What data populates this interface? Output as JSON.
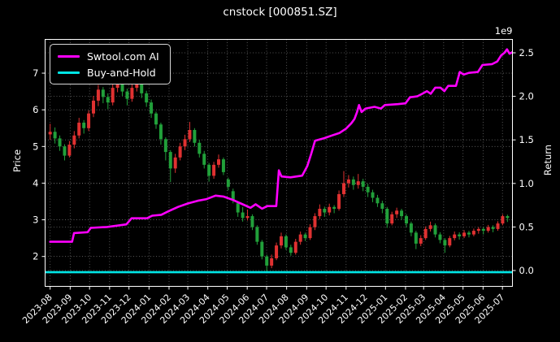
{
  "title": "cnstock [000851.SZ]",
  "legend": {
    "items": [
      {
        "label": "Swtool.com AI",
        "color": "#ff00ff"
      },
      {
        "label": "Buy-and-Hold",
        "color": "#00e6e6"
      }
    ]
  },
  "axes": {
    "left_label": "Price",
    "right_label": "Return",
    "right_offset_label": "1e9",
    "left_ticks": [
      "2",
      "3",
      "4",
      "5",
      "6",
      "7"
    ],
    "right_ticks": [
      "0.0",
      "0.5",
      "1.0",
      "1.5",
      "2.0",
      "2.5"
    ],
    "x_ticks": [
      "2023-08",
      "2023-09",
      "2023-10",
      "2023-11",
      "2023-12",
      "2024-01",
      "2024-02",
      "2024-03",
      "2024-04",
      "2024-05",
      "2024-06",
      "2024-07",
      "2024-08",
      "2024-09",
      "2024-10",
      "2024-11",
      "2024-12",
      "2025-01",
      "2025-02",
      "2025-03",
      "2025-04",
      "2025-05",
      "2025-06",
      "2025-07"
    ]
  },
  "chart_data": {
    "type": "candlestick",
    "title": "cnstock [000851.SZ]",
    "background": "#000000",
    "grid": true,
    "grid_color": "#6a6a6a",
    "legend_position": "upper left",
    "x_axis": {
      "tick_labels": [
        "2023-08",
        "2023-09",
        "2023-10",
        "2023-11",
        "2023-12",
        "2024-01",
        "2024-02",
        "2024-03",
        "2024-04",
        "2024-05",
        "2024-06",
        "2024-07",
        "2024-08",
        "2024-09",
        "2024-10",
        "2024-11",
        "2024-12",
        "2025-01",
        "2025-02",
        "2025-03",
        "2025-04",
        "2025-05",
        "2025-06",
        "2025-07"
      ],
      "tick_day_offsets": [
        0,
        31,
        61,
        92,
        122,
        153,
        184,
        213,
        244,
        274,
        305,
        335,
        366,
        397,
        427,
        458,
        488,
        519,
        550,
        578,
        609,
        639,
        670,
        700
      ],
      "days_total": 717
    },
    "left_axis": {
      "label": "Price",
      "ticks": [
        2,
        3,
        4,
        5,
        6,
        7
      ],
      "range": [
        1.18,
        7.93
      ]
    },
    "right_axis": {
      "label": "Return",
      "offset_text": "1e9",
      "ticks": [
        0.0,
        0.5,
        1.0,
        1.5,
        2.0,
        2.5
      ],
      "range": [
        -0.18,
        2.66
      ],
      "unit_scale": 1000000000
    },
    "candles": {
      "freq": "weekly-approximation",
      "day_step": 7.45,
      "up_color": "#e03131",
      "down_color": "#21a03a",
      "ohlc": [
        [
          5.33,
          5.62,
          5.18,
          5.4
        ],
        [
          5.4,
          5.52,
          5.08,
          5.22
        ],
        [
          5.22,
          5.3,
          4.88,
          5.0
        ],
        [
          5.0,
          5.06,
          4.62,
          4.75
        ],
        [
          4.75,
          5.15,
          4.7,
          5.05
        ],
        [
          5.05,
          5.42,
          4.95,
          5.3
        ],
        [
          5.3,
          5.78,
          5.22,
          5.65
        ],
        [
          5.65,
          5.72,
          5.35,
          5.5
        ],
        [
          5.5,
          5.98,
          5.42,
          5.9
        ],
        [
          5.9,
          6.38,
          5.8,
          6.25
        ],
        [
          6.25,
          6.68,
          6.1,
          6.55
        ],
        [
          6.55,
          6.62,
          6.18,
          6.35
        ],
        [
          6.35,
          6.45,
          6.02,
          6.2
        ],
        [
          6.2,
          6.72,
          6.12,
          6.6
        ],
        [
          6.6,
          7.08,
          6.48,
          6.85
        ],
        [
          6.85,
          6.92,
          6.38,
          6.5
        ],
        [
          6.5,
          6.58,
          6.12,
          6.3
        ],
        [
          6.3,
          6.7,
          6.22,
          6.6
        ],
        [
          6.6,
          7.0,
          6.5,
          6.8
        ],
        [
          6.8,
          6.85,
          6.32,
          6.45
        ],
        [
          6.45,
          6.52,
          6.08,
          6.2
        ],
        [
          6.2,
          6.28,
          5.78,
          5.9
        ],
        [
          5.9,
          5.95,
          5.48,
          5.6
        ],
        [
          5.6,
          5.65,
          5.05,
          5.2
        ],
        [
          5.2,
          5.25,
          4.62,
          4.85
        ],
        [
          4.85,
          4.9,
          4.03,
          4.4
        ],
        [
          4.4,
          4.8,
          4.28,
          4.7
        ],
        [
          4.7,
          5.1,
          4.62,
          5.0
        ],
        [
          5.0,
          5.32,
          4.9,
          5.2
        ],
        [
          5.2,
          5.67,
          5.12,
          5.45
        ],
        [
          5.45,
          5.5,
          5.0,
          5.1
        ],
        [
          5.1,
          5.18,
          4.7,
          4.8
        ],
        [
          4.8,
          4.88,
          4.4,
          4.5
        ],
        [
          4.5,
          4.55,
          4.04,
          4.2
        ],
        [
          4.2,
          4.58,
          4.12,
          4.5
        ],
        [
          4.5,
          4.78,
          4.42,
          4.65
        ],
        [
          4.65,
          4.7,
          4.22,
          4.3
        ],
        [
          4.1,
          4.15,
          3.8,
          3.9
        ],
        [
          3.78,
          3.85,
          3.45,
          3.55
        ],
        [
          3.45,
          3.5,
          3.08,
          3.2
        ],
        [
          3.2,
          3.35,
          2.95,
          3.05
        ],
        [
          3.05,
          3.28,
          2.98,
          3.1
        ],
        [
          3.1,
          3.15,
          2.72,
          2.8
        ],
        [
          2.8,
          2.85,
          2.32,
          2.4
        ],
        [
          2.4,
          2.45,
          1.92,
          2.0
        ],
        [
          2.0,
          2.05,
          1.57,
          1.75
        ],
        [
          1.75,
          2.05,
          1.68,
          1.95
        ],
        [
          1.95,
          2.38,
          1.9,
          2.3
        ],
        [
          2.3,
          2.65,
          2.22,
          2.55
        ],
        [
          2.55,
          2.6,
          2.18,
          2.25
        ],
        [
          2.25,
          2.32,
          2.02,
          2.1
        ],
        [
          2.1,
          2.48,
          2.05,
          2.4
        ],
        [
          2.4,
          2.68,
          2.32,
          2.6
        ],
        [
          2.6,
          2.65,
          2.42,
          2.5
        ],
        [
          2.5,
          2.88,
          2.45,
          2.8
        ],
        [
          2.8,
          3.18,
          2.72,
          3.1
        ],
        [
          3.1,
          3.42,
          3.02,
          3.3
        ],
        [
          3.3,
          3.36,
          3.08,
          3.2
        ],
        [
          3.2,
          3.44,
          3.12,
          3.35
        ],
        [
          3.35,
          3.4,
          3.18,
          3.3
        ],
        [
          3.3,
          3.8,
          3.25,
          3.7
        ],
        [
          3.7,
          4.33,
          3.62,
          4.0
        ],
        [
          4.0,
          4.22,
          3.88,
          4.1
        ],
        [
          4.1,
          4.18,
          3.82,
          3.95
        ],
        [
          3.95,
          4.25,
          3.85,
          4.05
        ],
        [
          4.05,
          4.12,
          3.78,
          3.9
        ],
        [
          3.9,
          3.98,
          3.62,
          3.75
        ],
        [
          3.75,
          3.82,
          3.48,
          3.6
        ],
        [
          3.6,
          3.68,
          3.35,
          3.45
        ],
        [
          3.45,
          3.52,
          3.18,
          3.3
        ],
        [
          3.3,
          3.35,
          2.78,
          2.9
        ],
        [
          2.9,
          3.22,
          2.85,
          3.15
        ],
        [
          3.15,
          3.33,
          3.05,
          3.25
        ],
        [
          3.25,
          3.3,
          3.0,
          3.1
        ],
        [
          3.1,
          3.15,
          2.8,
          2.9
        ],
        [
          2.9,
          2.95,
          2.55,
          2.65
        ],
        [
          2.65,
          2.7,
          2.2,
          2.35
        ],
        [
          2.35,
          2.58,
          2.28,
          2.5
        ],
        [
          2.5,
          2.82,
          2.45,
          2.75
        ],
        [
          2.75,
          2.95,
          2.68,
          2.85
        ],
        [
          2.85,
          2.9,
          2.52,
          2.6
        ],
        [
          2.6,
          2.66,
          2.36,
          2.45
        ],
        [
          2.45,
          2.5,
          2.1,
          2.3
        ],
        [
          2.3,
          2.56,
          2.25,
          2.5
        ],
        [
          2.5,
          2.68,
          2.44,
          2.6
        ],
        [
          2.6,
          2.66,
          2.46,
          2.55
        ],
        [
          2.55,
          2.72,
          2.5,
          2.65
        ],
        [
          2.65,
          2.7,
          2.52,
          2.6
        ],
        [
          2.6,
          2.76,
          2.55,
          2.7
        ],
        [
          2.7,
          2.8,
          2.62,
          2.75
        ],
        [
          2.75,
          2.8,
          2.6,
          2.7
        ],
        [
          2.7,
          2.86,
          2.65,
          2.8
        ],
        [
          2.8,
          2.85,
          2.66,
          2.75
        ],
        [
          2.75,
          2.96,
          2.7,
          2.9
        ],
        [
          2.9,
          3.15,
          2.85,
          3.1
        ],
        [
          3.1,
          3.14,
          2.94,
          3.05
        ]
      ]
    },
    "series": [
      {
        "name": "Swtool.com AI",
        "color": "#ff00ff",
        "axis": "right",
        "points": [
          [
            0,
            0.33
          ],
          [
            34,
            0.33
          ],
          [
            37,
            0.43
          ],
          [
            58,
            0.44
          ],
          [
            63,
            0.49
          ],
          [
            88,
            0.5
          ],
          [
            118,
            0.53
          ],
          [
            126,
            0.6
          ],
          [
            150,
            0.6
          ],
          [
            158,
            0.63
          ],
          [
            172,
            0.64
          ],
          [
            183,
            0.68
          ],
          [
            198,
            0.73
          ],
          [
            213,
            0.77
          ],
          [
            228,
            0.8
          ],
          [
            242,
            0.82
          ],
          [
            256,
            0.86
          ],
          [
            268,
            0.85
          ],
          [
            283,
            0.81
          ],
          [
            298,
            0.76
          ],
          [
            310,
            0.72
          ],
          [
            318,
            0.76
          ],
          [
            328,
            0.71
          ],
          [
            336,
            0.74
          ],
          [
            350,
            0.74
          ],
          [
            354,
            1.15
          ],
          [
            358,
            1.08
          ],
          [
            372,
            1.07
          ],
          [
            390,
            1.09
          ],
          [
            398,
            1.2
          ],
          [
            404,
            1.34
          ],
          [
            410,
            1.49
          ],
          [
            424,
            1.52
          ],
          [
            436,
            1.55
          ],
          [
            448,
            1.58
          ],
          [
            458,
            1.63
          ],
          [
            466,
            1.69
          ],
          [
            471,
            1.74
          ],
          [
            475,
            1.82
          ],
          [
            478,
            1.9
          ],
          [
            482,
            1.82
          ],
          [
            488,
            1.86
          ],
          [
            502,
            1.88
          ],
          [
            512,
            1.86
          ],
          [
            518,
            1.9
          ],
          [
            538,
            1.91
          ],
          [
            550,
            1.92
          ],
          [
            557,
            1.99
          ],
          [
            568,
            2.0
          ],
          [
            576,
            2.03
          ],
          [
            583,
            2.06
          ],
          [
            589,
            2.03
          ],
          [
            596,
            2.1
          ],
          [
            604,
            2.1
          ],
          [
            610,
            2.06
          ],
          [
            616,
            2.12
          ],
          [
            628,
            2.12
          ],
          [
            634,
            2.28
          ],
          [
            640,
            2.25
          ],
          [
            648,
            2.27
          ],
          [
            662,
            2.28
          ],
          [
            669,
            2.36
          ],
          [
            684,
            2.37
          ],
          [
            692,
            2.4
          ],
          [
            698,
            2.47
          ],
          [
            703,
            2.5
          ],
          [
            707,
            2.54
          ],
          [
            711,
            2.49
          ],
          [
            716,
            2.51
          ]
        ]
      },
      {
        "name": "Buy-and-Hold",
        "color": "#00e6e6",
        "axis": "right",
        "points": [
          [
            -8,
            -0.02
          ],
          [
            718,
            -0.02
          ]
        ]
      }
    ]
  }
}
